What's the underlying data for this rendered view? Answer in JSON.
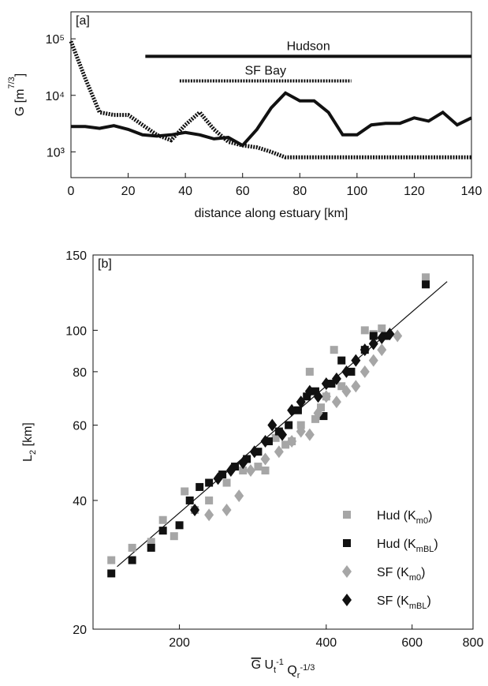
{
  "chart_data": [
    {
      "type": "line",
      "panel_label": "[a]",
      "xlabel": [
        {
          "text": "distance along estuary [km]"
        }
      ],
      "ylabel": [
        {
          "text": "G [m"
        },
        {
          "text": "7/3",
          "style": "sup"
        },
        {
          "text": "]"
        }
      ],
      "xlim": [
        0,
        140
      ],
      "xticks": [
        0,
        20,
        40,
        60,
        80,
        100,
        120,
        140
      ],
      "ylim": [
        350,
        300000
      ],
      "log_y": true,
      "yticks": [
        {
          "value": 1000,
          "label": "10³"
        },
        {
          "value": 10000,
          "label": "10⁴"
        },
        {
          "value": 100000,
          "label": "10⁵"
        }
      ],
      "x": [
        0,
        5,
        10,
        15,
        20,
        25,
        30,
        35,
        40,
        45,
        50,
        55,
        60,
        65,
        70,
        75,
        80,
        85,
        90,
        95,
        100,
        105,
        110,
        115,
        120,
        125,
        130,
        135,
        140
      ],
      "series": [
        {
          "color": "#111111",
          "dash": "solid",
          "values": [
            2800,
            2800,
            2600,
            2900,
            2500,
            2000,
            1900,
            2000,
            2200,
            2000,
            1700,
            1800,
            1300,
            2500,
            6000,
            11000,
            8000,
            8000,
            5000,
            2000,
            2000,
            3000,
            3200,
            3200,
            4000,
            3500,
            5000,
            3000,
            4000
          ]
        },
        {
          "color": "#111111",
          "dash": "dotted",
          "values": [
            90000,
            20000,
            5000,
            4500,
            4500,
            3000,
            2000,
            1600,
            3000,
            5000,
            2500,
            1500,
            1300,
            1200,
            1000,
            800,
            800,
            800,
            800,
            800,
            800,
            800,
            800,
            800,
            800,
            800,
            800,
            800,
            800
          ]
        }
      ],
      "annotations": [
        {
          "text": "Hudson",
          "x": [
            26,
            140
          ],
          "y": 49000,
          "style": "solid"
        },
        {
          "text": "SF Bay",
          "x": [
            38,
            98
          ],
          "y": 18000,
          "style": "dotted"
        }
      ]
    },
    {
      "type": "scatter",
      "panel_label": "[b]",
      "xlabel": [
        {
          "text": "G",
          "style": "overline"
        },
        {
          "text": " U"
        },
        {
          "text": "t",
          "style": "sub"
        },
        {
          "text": "-1",
          "style": "sup"
        },
        {
          "text": " Q"
        },
        {
          "text": "r",
          "style": "sub"
        },
        {
          "text": "-1/3",
          "style": "sup"
        }
      ],
      "ylabel": [
        {
          "text": "L"
        },
        {
          "text": "2",
          "style": "sub"
        },
        {
          "text": " [km]"
        }
      ],
      "xlim": [
        133,
        800
      ],
      "xticks": [
        200,
        400,
        600,
        800
      ],
      "log_x": true,
      "ylim": [
        20,
        150
      ],
      "yticks": [
        20,
        40,
        60,
        80,
        100,
        150
      ],
      "log_y": true,
      "legend": "lower right",
      "fit": {
        "x": [
          149,
          708
        ],
        "y": [
          28,
          130
        ]
      },
      "series": [
        {
          "name": [
            {
              "text": "Hud (K"
            },
            {
              "text": "m0",
              "style": "sub"
            },
            {
              "text": ")"
            }
          ],
          "color": "#a6a6a6",
          "marker": "square",
          "x": [
            145,
            160,
            175,
            185,
            195,
            205,
            215,
            230,
            250,
            270,
            290,
            300,
            315,
            330,
            340,
            355,
            370,
            380,
            390,
            400,
            415,
            430,
            450,
            480,
            500,
            520,
            640
          ],
          "values": [
            29,
            31,
            32,
            36,
            33,
            42,
            38,
            40,
            44,
            47,
            48,
            47,
            56,
            54,
            55,
            60,
            80,
            62,
            66,
            70,
            90,
            74,
            80,
            100,
            98,
            101,
            133
          ]
        },
        {
          "name": [
            {
              "text": "Hud (K"
            },
            {
              "text": "mBL",
              "style": "sub"
            },
            {
              "text": ")"
            }
          ],
          "color": "#111111",
          "marker": "square",
          "x": [
            145,
            160,
            175,
            185,
            200,
            210,
            220,
            230,
            245,
            260,
            275,
            290,
            305,
            320,
            335,
            350,
            365,
            380,
            395,
            410,
            430,
            450,
            480,
            500,
            530,
            640
          ],
          "values": [
            27,
            29,
            31,
            34,
            35,
            40,
            43,
            44,
            46,
            48,
            50,
            52,
            55,
            58,
            60,
            65,
            70,
            72,
            63,
            75,
            85,
            80,
            90,
            97,
            97,
            128
          ]
        },
        {
          "name": [
            {
              "text": "SF (K"
            },
            {
              "text": "m0",
              "style": "sub"
            },
            {
              "text": ")"
            }
          ],
          "color": "#a6a6a6",
          "marker": "diamond",
          "x": [
            230,
            250,
            265,
            280,
            300,
            320,
            340,
            355,
            370,
            385,
            400,
            420,
            440,
            460,
            480,
            500,
            520,
            560
          ],
          "values": [
            37,
            38,
            41,
            47,
            50,
            52,
            55,
            58,
            57,
            64,
            70,
            68,
            72,
            74,
            80,
            85,
            90,
            97
          ]
        },
        {
          "name": [
            {
              "text": "SF (K"
            },
            {
              "text": "mBL",
              "style": "sub"
            },
            {
              "text": ")"
            }
          ],
          "color": "#111111",
          "marker": "diamond",
          "x": [
            215,
            240,
            255,
            270,
            285,
            300,
            310,
            325,
            340,
            355,
            370,
            385,
            400,
            420,
            440,
            460,
            480,
            500,
            520,
            540
          ],
          "values": [
            38,
            45,
            47,
            49,
            52,
            55,
            60,
            57,
            65,
            68,
            72,
            70,
            75,
            77,
            80,
            85,
            90,
            93,
            96,
            98
          ]
        }
      ]
    }
  ]
}
